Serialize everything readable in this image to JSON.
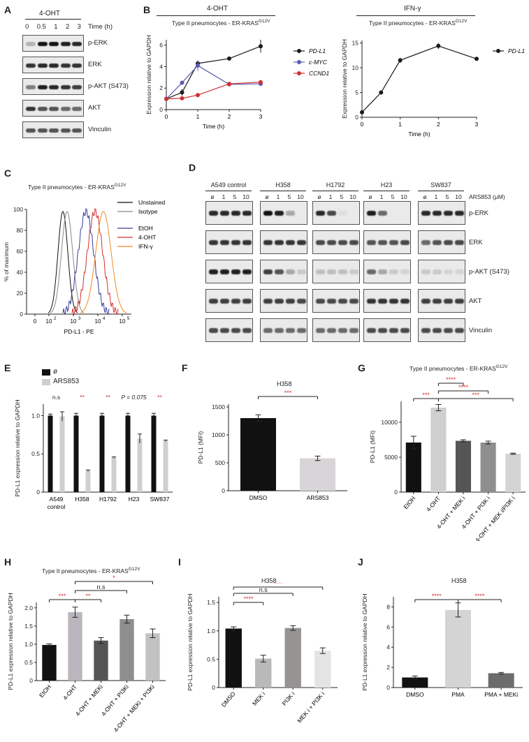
{
  "panel_letters": {
    "A": "A",
    "B": "B",
    "C": "C",
    "D": "D",
    "E": "E",
    "F": "F",
    "G": "G",
    "H": "H",
    "I": "I",
    "J": "J"
  },
  "panelA": {
    "treatment": "4-OHT",
    "time_label": "Time (h)",
    "times": [
      "0",
      "0.5",
      "1",
      "2",
      "3"
    ],
    "rows": [
      "p-ERK",
      "ERK",
      "p-AKT (S473)",
      "AKT",
      "Vinculin"
    ]
  },
  "panelB_left_header": "4-OHT",
  "panelB_right_header": "IFN-γ",
  "panelB_subtitle": "Type II pneumocytes - ER-KRAS",
  "superscript": "G12V",
  "panelC_title": "Type II pneumocytes - ER-KRAS",
  "panelC": {
    "ylabel": "% of maximum",
    "xlabel": "PD-L1 - PE",
    "legend": [
      "Unstained",
      "Isotype",
      "EtOH",
      "4-OHT",
      "IFN-γ"
    ],
    "yticks": [
      "0",
      "20",
      "40",
      "60",
      "80",
      "100"
    ]
  },
  "panelD": {
    "groups": [
      "A549 control",
      "H358",
      "H1792",
      "H23",
      "SW837"
    ],
    "doses": [
      "ø",
      "1",
      "5",
      "10"
    ],
    "dose_label": "ARS853 (μM)",
    "rows": [
      "p-ERK",
      "ERK",
      "p-AKT (S473)",
      "AKT",
      "Vinculin"
    ]
  },
  "panelF_title": "H358",
  "panelG_title": "Type II pneumocytes - ER-KRAS",
  "panelH_title": "Type II pneumocytes - ER-KRAS",
  "panelI_title": "H358",
  "panelJ_title": "H358",
  "chart_data": [
    {
      "id": "B-left",
      "type": "line",
      "x": [
        0,
        0.5,
        1,
        2,
        3
      ],
      "series": [
        {
          "name": "PD-L1",
          "values": [
            1,
            1.6,
            4.3,
            4.75,
            5.9
          ],
          "err": [
            0.1,
            0.3,
            0.25,
            0.1,
            0.6
          ],
          "color": "#1a1a1a"
        },
        {
          "name": "c-MYC",
          "values": [
            1,
            2.5,
            4.1,
            2.35,
            2.4
          ],
          "err": [
            0.1,
            0.1,
            0.5,
            0.1,
            0.15
          ],
          "color": "#5b5bb5"
        },
        {
          "name": "CCND1",
          "values": [
            1,
            1.05,
            1.35,
            2.4,
            2.55
          ],
          "err": [
            0.05,
            0.1,
            0.1,
            0.1,
            0.1
          ],
          "color": "#d32f2f"
        }
      ],
      "xlabel": "Time (h)",
      "ylabel": "Expression relative to GAPDH",
      "xlim": [
        0,
        3
      ],
      "ylim": [
        0,
        6.5
      ],
      "xticks": [
        "0",
        "1",
        "2",
        "3"
      ],
      "yticks": [
        "0",
        "2",
        "4",
        "6"
      ]
    },
    {
      "id": "B-right",
      "type": "line",
      "x": [
        0,
        0.5,
        1,
        2,
        3
      ],
      "series": [
        {
          "name": "PD-L1",
          "values": [
            1,
            5,
            11.5,
            14.4,
            11.8
          ],
          "err": [
            0.1,
            0.2,
            0.5,
            0.6,
            0.2
          ],
          "color": "#1a1a1a"
        }
      ],
      "xlabel": "Time (h)",
      "ylabel": "Expression relative to GAPDH",
      "xlim": [
        0,
        3
      ],
      "ylim": [
        0,
        15.5
      ],
      "xticks": [
        "0",
        "1",
        "2",
        "3"
      ],
      "yticks": [
        "0",
        "5",
        "10",
        "15"
      ]
    },
    {
      "id": "E",
      "type": "bar",
      "categories": [
        "A549 control",
        "H358",
        "H1792",
        "H23",
        "SW837"
      ],
      "series": [
        {
          "name": "ø",
          "values": [
            1,
            1,
            1,
            1,
            1
          ],
          "err": [
            0.02,
            0.03,
            0.03,
            0.03,
            0.03
          ],
          "color": "#111111"
        },
        {
          "name": "ARS853",
          "values": [
            0.99,
            0.28,
            0.45,
            0.7,
            0.67
          ],
          "err": [
            0.06,
            0.01,
            0.01,
            0.06,
            0.01
          ],
          "color": "#cfcfcf"
        }
      ],
      "significance": [
        "n.s",
        "**",
        "**",
        "P = 0.075",
        "**"
      ],
      "ylabel": "PD-L1 expression relative to GAPDH",
      "ylim": [
        0,
        1.15
      ],
      "yticks": [
        "0",
        "0.5",
        "1.0"
      ]
    },
    {
      "id": "F",
      "type": "bar",
      "categories": [
        "DMSO",
        "ARS853"
      ],
      "values": [
        1300,
        580
      ],
      "err": [
        60,
        40
      ],
      "colors": [
        "#111111",
        "#d8d4d7"
      ],
      "ylabel": "PD-L1 (MFI)",
      "ylim": [
        0,
        1550
      ],
      "yticks": [
        "0",
        "500",
        "1000",
        "1500"
      ],
      "significance": [
        "***"
      ]
    },
    {
      "id": "G",
      "type": "bar",
      "categories": [
        "EtOH",
        "4-OHT",
        "4-OHT + MEK i",
        "4-OHT + PI3K i",
        "4-OHT + MEK i/PI3K i"
      ],
      "values": [
        7100,
        12100,
        7350,
        7100,
        5500
      ],
      "err": [
        900,
        450,
        150,
        200,
        80
      ],
      "colors": [
        "#111111",
        "#cfcfcf",
        "#555555",
        "#8e8e8e",
        "#d4d4d4"
      ],
      "ylabel": "PD-L1 (MFI)",
      "ylim": [
        0,
        13000
      ],
      "yticks": [
        "0",
        "5000",
        "10000"
      ],
      "significance": [
        "***",
        "****",
        "****",
        "***"
      ]
    },
    {
      "id": "H",
      "type": "bar",
      "categories": [
        "EtOH",
        "4-OHT",
        "4-OHT + MEKi",
        "4-OHT + PI3Ki",
        "4-OHT + MEKi + PI3Ki"
      ],
      "values": [
        0.98,
        1.88,
        1.1,
        1.69,
        1.3
      ],
      "err": [
        0.03,
        0.14,
        0.08,
        0.11,
        0.12
      ],
      "colors": [
        "#111111",
        "#b9b6bd",
        "#555555",
        "#8e8e8e",
        "#c2c2c2"
      ],
      "ylabel": "PD-L1 expression relative to GAPDH",
      "ylim": [
        0,
        2.15
      ],
      "yticks": [
        "0",
        "0.5",
        "1.0",
        "1.5",
        "2.0"
      ],
      "significance": [
        "***",
        "**",
        "n.s",
        "*"
      ]
    },
    {
      "id": "I",
      "type": "bar",
      "categories": [
        "DMSO",
        "MEK i",
        "PI3K i",
        "MEK i + PI3K i"
      ],
      "values": [
        1.04,
        0.51,
        1.05,
        0.65
      ],
      "err": [
        0.03,
        0.06,
        0.04,
        0.05
      ],
      "colors": [
        "#111111",
        "#b9b9b9",
        "#969393",
        "#e4e4e4"
      ],
      "ylabel": "PD-L1 expression relative to GAPDH",
      "ylim": [
        0,
        1.6
      ],
      "yticks": [
        "0",
        "0.5",
        "1.0",
        "1.5"
      ],
      "significance": [
        "****",
        "n.s",
        "****"
      ]
    },
    {
      "id": "J",
      "type": "bar",
      "categories": [
        "DMSO",
        "PMA",
        "PMA + MEKi"
      ],
      "values": [
        1.0,
        7.7,
        1.42
      ],
      "err": [
        0.15,
        0.7,
        0.08
      ],
      "colors": [
        "#111111",
        "#d4d4d4",
        "#6c6c6c"
      ],
      "ylabel": "PD-L1 expression relative to GAPDH",
      "ylim": [
        0,
        9
      ],
      "yticks": [
        "0",
        "2",
        "4",
        "6",
        "8"
      ],
      "significance": [
        "****",
        "****"
      ]
    }
  ],
  "flow_ticks": [
    "0",
    "10",
    "10",
    "10",
    "10"
  ],
  "flow_tick_exps": [
    "",
    "2",
    "3",
    "4",
    "5"
  ]
}
